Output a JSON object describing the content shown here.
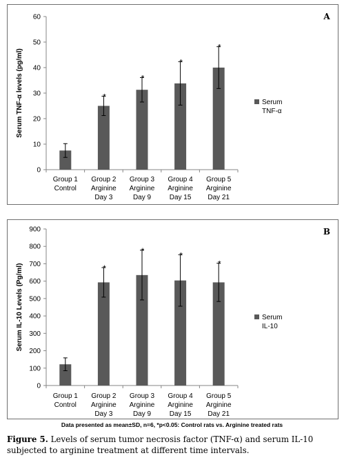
{
  "chart_data": [
    {
      "type": "bar",
      "panel_letter": "A",
      "categories": [
        [
          "Group 1",
          "Control"
        ],
        [
          "Group 2",
          "Arginine",
          "Day 3"
        ],
        [
          "Group 3",
          "Arginine",
          "Day 9"
        ],
        [
          "Group 4",
          "Arginine",
          "Day 15"
        ],
        [
          "Group 5",
          "Arginine",
          "Day 21"
        ]
      ],
      "series": [
        {
          "name": "Serum TNF-α",
          "legend_lines": [
            "Serum",
            "TNF-α"
          ],
          "values": [
            7.5,
            25,
            31.3,
            33.8,
            40
          ],
          "errors": [
            2.7,
            3.8,
            4.8,
            8.5,
            8.2
          ],
          "significance": [
            "",
            "*",
            "*",
            "*",
            "*"
          ]
        }
      ],
      "ylabel": "Serum TNF-α levels (pg/ml)",
      "ylim": [
        0,
        60
      ],
      "yticks": [
        0,
        10,
        20,
        30,
        40,
        50,
        60
      ],
      "bar_color": "#595959",
      "grid": false,
      "legend_position": "right"
    },
    {
      "type": "bar",
      "panel_letter": "B",
      "categories": [
        [
          "Group 1",
          "Control"
        ],
        [
          "Group 2",
          "Arginine",
          "Day 3"
        ],
        [
          "Group 3",
          "Arginine",
          "Day 9"
        ],
        [
          "Group 4",
          "Arginine",
          "Day 15"
        ],
        [
          "Group 5",
          "Arginine",
          "Day 21"
        ]
      ],
      "series": [
        {
          "name": "Serum IL-10",
          "legend_lines": [
            "Serum",
            "IL-10"
          ],
          "values": [
            122,
            593,
            635,
            604,
            593
          ],
          "errors": [
            37,
            85,
            143,
            148,
            110
          ],
          "significance": [
            "",
            "*",
            "*",
            "*",
            "*"
          ]
        }
      ],
      "ylabel": "Serum IL-10 Levels (Pg/ml)",
      "ylim": [
        0,
        900
      ],
      "yticks": [
        0,
        100,
        200,
        300,
        400,
        500,
        600,
        700,
        800,
        900
      ],
      "bar_color": "#595959",
      "grid": false,
      "legend_position": "right"
    }
  ],
  "footnote": "Data presented as mean±SD, n=6, *p<0.05: Control rats vs. Arginine treated rats",
  "caption": {
    "label": "Figure 5.",
    "text": " Levels of serum tumor necrosis factor (TNF-α) and serum IL-10 subjected to arginine treatment at different time intervals."
  }
}
